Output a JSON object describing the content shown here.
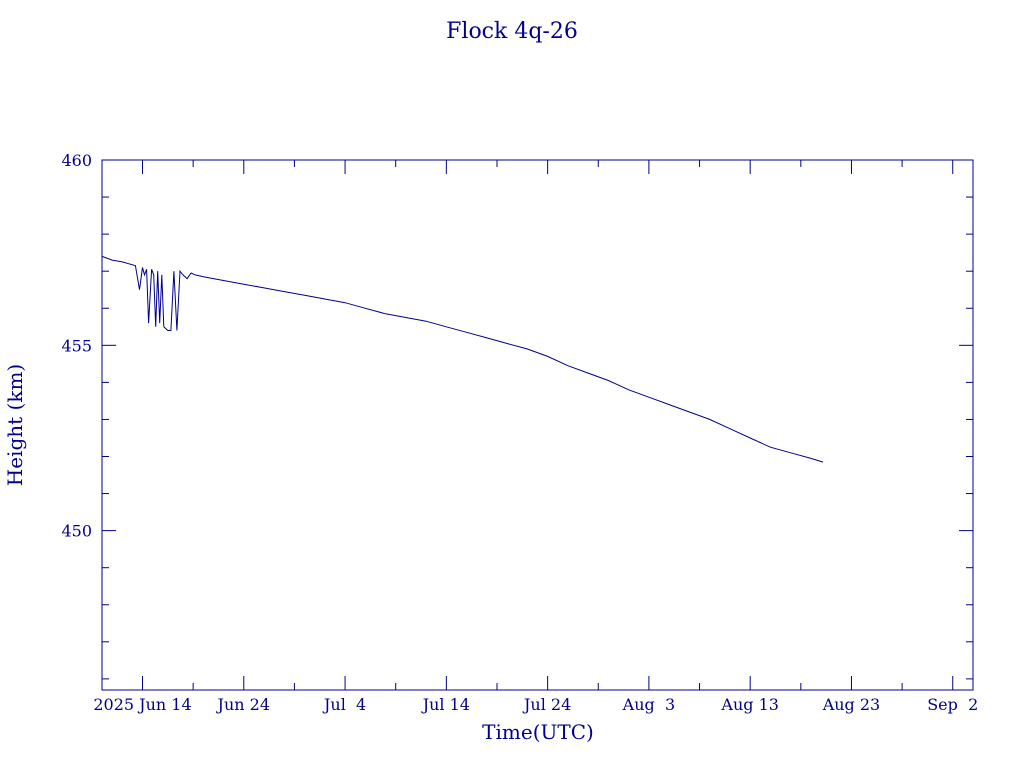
{
  "chart_data": {
    "type": "line",
    "title": "Flock 4q-26",
    "xlabel": "Time(UTC)",
    "ylabel": "Height (km)",
    "color": "#00008b",
    "xlim": [
      "2025-06-10",
      "2025-09-04"
    ],
    "ylim": [
      445.7,
      460
    ],
    "x_tick_labels": [
      {
        "date": "2025-06-14",
        "label": "2025 Jun 14"
      },
      {
        "date": "2025-06-24",
        "label": "Jun 24"
      },
      {
        "date": "2025-07-04",
        "label": "Jul  4"
      },
      {
        "date": "2025-07-14",
        "label": "Jul 14"
      },
      {
        "date": "2025-07-24",
        "label": "Jul 24"
      },
      {
        "date": "2025-08-03",
        "label": "Aug  3"
      },
      {
        "date": "2025-08-13",
        "label": "Aug 13"
      },
      {
        "date": "2025-08-23",
        "label": "Aug 23"
      },
      {
        "date": "2025-09-02",
        "label": "Sep  2"
      }
    ],
    "y_ticks": [
      450,
      455,
      460
    ],
    "y_tick_labels": [
      "450",
      "455",
      "460"
    ],
    "y_minor_step": 1,
    "grid": false,
    "series": [
      {
        "x": [
          "2025-06-10",
          "2025-06-11",
          "2025-06-12",
          "2025-06-13.3",
          "2025-06-13.7",
          "2025-06-14.0",
          "2025-06-14.2",
          "2025-06-14.4",
          "2025-06-14.6",
          "2025-06-14.9",
          "2025-06-15.1",
          "2025-06-15.3",
          "2025-06-15.5",
          "2025-06-15.7",
          "2025-06-15.9",
          "2025-06-16.1",
          "2025-06-16.3",
          "2025-06-16.5",
          "2025-06-16.8",
          "2025-06-17.1",
          "2025-06-17.4",
          "2025-06-17.7",
          "2025-06-18.0",
          "2025-06-18.4",
          "2025-06-18.8",
          "2025-06-19.2",
          "2025-06-20",
          "2025-06-22",
          "2025-06-24",
          "2025-06-26",
          "2025-06-28",
          "2025-06-30",
          "2025-07-02",
          "2025-07-04",
          "2025-07-06",
          "2025-07-08",
          "2025-07-10",
          "2025-07-12",
          "2025-07-14",
          "2025-07-16",
          "2025-07-18",
          "2025-07-20",
          "2025-07-22",
          "2025-07-24",
          "2025-07-26",
          "2025-07-28",
          "2025-07-30",
          "2025-08-01",
          "2025-08-03",
          "2025-08-05",
          "2025-08-07",
          "2025-08-09",
          "2025-08-11",
          "2025-08-13",
          "2025-08-15",
          "2025-08-17",
          "2025-08-19",
          "2025-08-20.2"
        ],
        "y": [
          457.4,
          457.3,
          457.25,
          457.15,
          456.5,
          457.1,
          456.9,
          457.05,
          455.6,
          457.05,
          456.9,
          455.5,
          457.0,
          455.6,
          456.9,
          455.5,
          455.45,
          455.4,
          455.4,
          457.0,
          455.4,
          457.0,
          456.9,
          456.8,
          456.95,
          456.9,
          456.85,
          456.75,
          456.65,
          456.55,
          456.45,
          456.35,
          456.25,
          456.15,
          456.0,
          455.85,
          455.75,
          455.65,
          455.5,
          455.35,
          455.2,
          455.05,
          454.9,
          454.7,
          454.45,
          454.25,
          454.05,
          453.8,
          453.6,
          453.4,
          453.2,
          453.0,
          452.75,
          452.5,
          452.25,
          452.1,
          451.95,
          451.85
        ]
      }
    ]
  }
}
